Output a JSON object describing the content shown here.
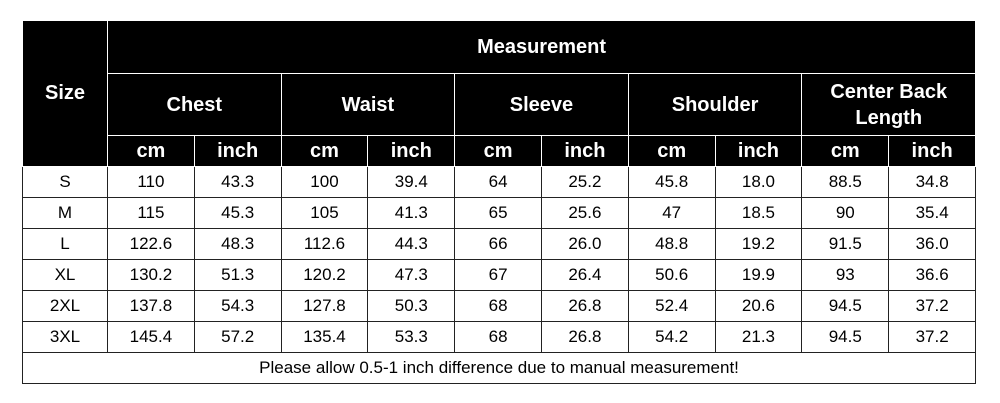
{
  "table": {
    "size_header": "Size",
    "measurement_header": "Measurement",
    "groups": [
      "Chest",
      "Waist",
      "Sleeve",
      "Shoulder",
      "Center Back Length"
    ],
    "units": [
      "cm",
      "inch",
      "cm",
      "inch",
      "cm",
      "inch",
      "cm",
      "inch",
      "cm",
      "inch"
    ],
    "rows": [
      [
        "S",
        "110",
        "43.3",
        "100",
        "39.4",
        "64",
        "25.2",
        "45.8",
        "18.0",
        "88.5",
        "34.8"
      ],
      [
        "M",
        "115",
        "45.3",
        "105",
        "41.3",
        "65",
        "25.6",
        "47",
        "18.5",
        "90",
        "35.4"
      ],
      [
        "L",
        "122.6",
        "48.3",
        "112.6",
        "44.3",
        "66",
        "26.0",
        "48.8",
        "19.2",
        "91.5",
        "36.0"
      ],
      [
        "XL",
        "130.2",
        "51.3",
        "120.2",
        "47.3",
        "67",
        "26.4",
        "50.6",
        "19.9",
        "93",
        "36.6"
      ],
      [
        "2XL",
        "137.8",
        "54.3",
        "127.8",
        "50.3",
        "68",
        "26.8",
        "52.4",
        "20.6",
        "94.5",
        "37.2"
      ],
      [
        "3XL",
        "145.4",
        "57.2",
        "135.4",
        "53.3",
        "68",
        "26.8",
        "54.2",
        "21.3",
        "94.5",
        "37.2"
      ]
    ],
    "footer": "Please allow 0.5-1 inch difference due to manual measurement!"
  }
}
